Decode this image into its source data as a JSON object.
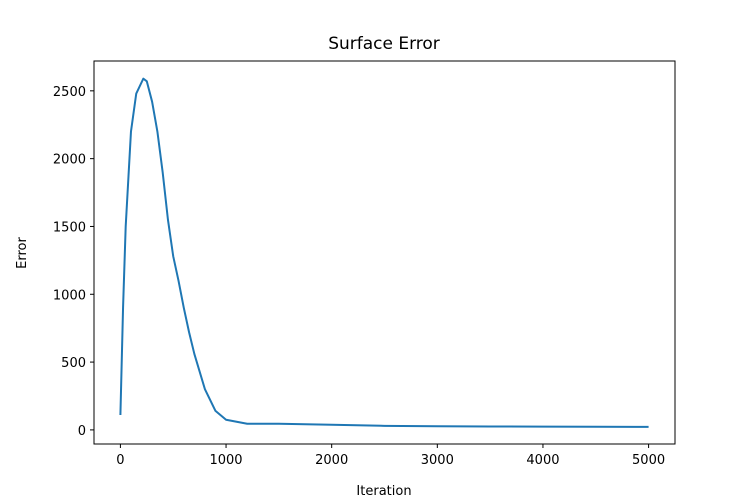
{
  "chart_data": {
    "type": "line",
    "title": "Surface Error",
    "x_label": "Iteration",
    "y_label": "Error",
    "x": [
      0,
      25,
      50,
      100,
      150,
      217,
      250,
      300,
      350,
      400,
      450,
      500,
      550,
      600,
      650,
      700,
      800,
      900,
      1000,
      1200,
      1500,
      2000,
      2500,
      3000,
      3500,
      4000,
      4500,
      5000
    ],
    "series": [
      {
        "name": "Error",
        "color": "#1f77b4",
        "values": [
          110,
          900,
          1500,
          2200,
          2480,
          2590,
          2570,
          2420,
          2200,
          1900,
          1550,
          1280,
          1100,
          900,
          720,
          560,
          300,
          140,
          75,
          45,
          45,
          38,
          30,
          27,
          25,
          24,
          23,
          22
        ]
      }
    ],
    "xlim": [
      -250,
      5250
    ],
    "ylim": [
      -104,
      2720
    ],
    "xticks": [
      0,
      1000,
      2000,
      3000,
      4000,
      5000
    ],
    "yticks": [
      0,
      500,
      1000,
      1500,
      2000,
      2500
    ],
    "grid": false
  }
}
